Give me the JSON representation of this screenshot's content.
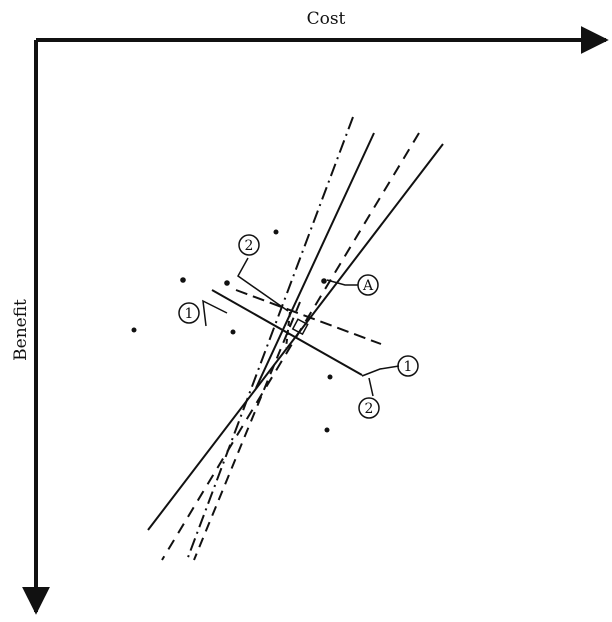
{
  "figure": {
    "x_axis_label": "Cost",
    "y_axis_label": "Benefit",
    "markers": {
      "one_left": "1",
      "two_top": "2",
      "a_marker": "A",
      "one_right": "1",
      "two_bottom": "2"
    }
  },
  "colors": {
    "ink": "#111111",
    "background": "#ffffff"
  }
}
